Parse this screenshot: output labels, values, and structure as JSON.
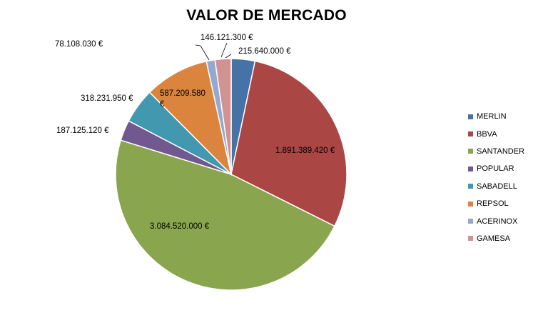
{
  "chart_data": {
    "type": "pie",
    "title": "VALOR DE MERCADO",
    "categories": [
      "MERLIN",
      "BBVA",
      "SANTANDER",
      "POPULAR",
      "SABADELL",
      "REPSOL",
      "ACERINOX",
      "GAMESA"
    ],
    "values": [
      215640000,
      1891389420,
      3084520000,
      187125120,
      318231950,
      587209580,
      78108030,
      146121300
    ],
    "data_labels": [
      "215.640.000 €",
      "1.891.389.420 €",
      "3.084.520.000 €",
      "187.125.120 €",
      "318.231.950 €",
      "587.209.580 €",
      "78.108.030 €",
      "146.121.300 €"
    ],
    "colors": [
      "#4572A7",
      "#AA4643",
      "#89A54E",
      "#71588F",
      "#4198AF",
      "#DB843D",
      "#93A9CF",
      "#D19392"
    ],
    "legend_position": "right",
    "start_angle": "12 o'clock, clockwise"
  }
}
